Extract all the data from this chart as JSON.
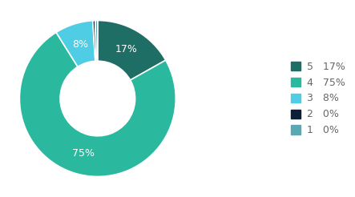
{
  "labels": [
    "5",
    "4",
    "3",
    "2",
    "1"
  ],
  "values": [
    17,
    75,
    8,
    0.5,
    0.5
  ],
  "display_pcts": [
    "17%",
    "75%",
    "8%",
    "0%",
    "0%"
  ],
  "colors": [
    "#1e6e65",
    "#2ab99e",
    "#4ecde4",
    "#0d1f38",
    "#5ba8b5"
  ],
  "background_color": "#ffffff",
  "wedge_text_color": "#ffffff",
  "legend_text_color": "#666666",
  "font_size": 9,
  "legend_font_size": 9
}
